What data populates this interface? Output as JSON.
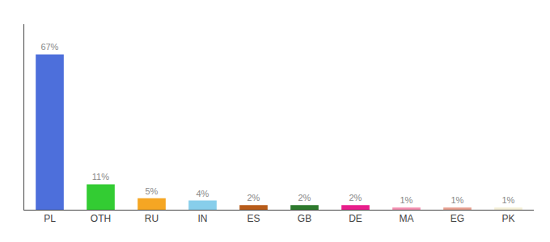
{
  "chart_data": {
    "type": "bar",
    "categories": [
      "PL",
      "OTH",
      "RU",
      "IN",
      "ES",
      "GB",
      "DE",
      "MA",
      "EG",
      "PK"
    ],
    "values": [
      67,
      11,
      5,
      4,
      2,
      2,
      2,
      1,
      1,
      1
    ],
    "value_labels": [
      "67%",
      "11%",
      "5%",
      "4%",
      "2%",
      "2%",
      "2%",
      "1%",
      "1%",
      "1%"
    ],
    "colors": [
      "#4d6fdb",
      "#33cc33",
      "#f5a623",
      "#87ceeb",
      "#b85c1a",
      "#2d7a2d",
      "#e91e8c",
      "#f48fb1",
      "#e8a090",
      "#f5f0d8"
    ],
    "ylim": [
      0,
      80
    ],
    "data_labels": true,
    "tick_labels": "x",
    "grid": false
  }
}
